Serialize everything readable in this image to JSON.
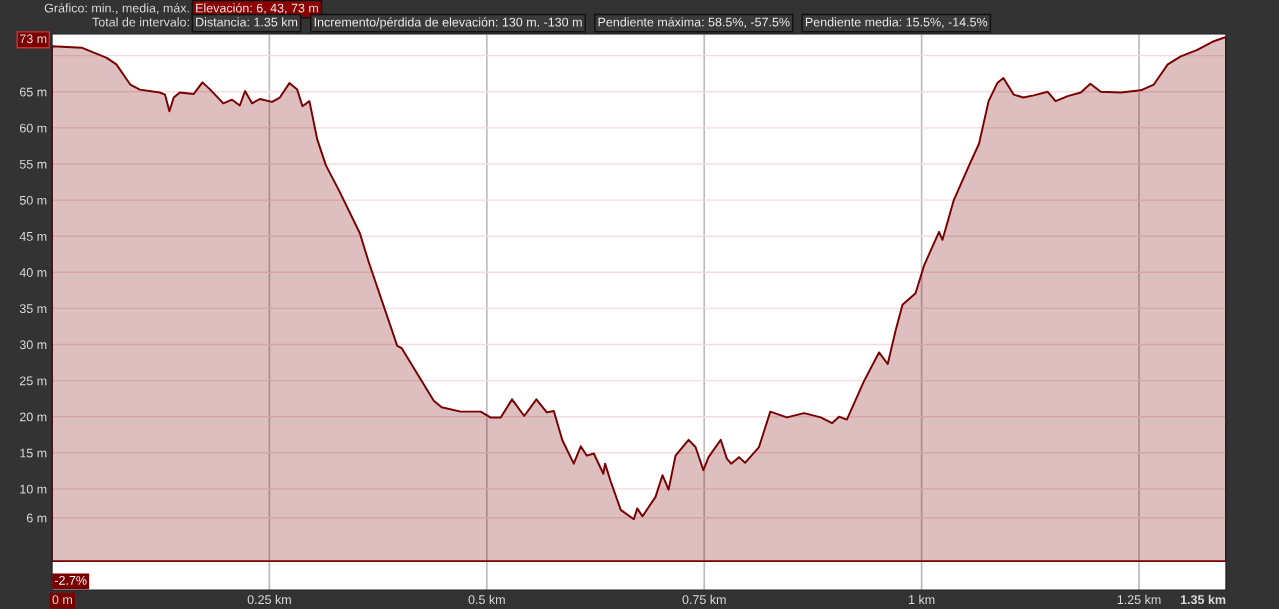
{
  "chart_data": {
    "type": "area",
    "annotations": [
      "Gráfico: min., media, máx.",
      "Elevación: 6, 43, 73 m",
      "Total de intervalo:",
      "Distancia: 1.35 km",
      "Incremento/pérdida de elevación: 130 m. -130 m",
      "Pendiente máxima: 58.5%, -57.5%",
      "Pendiente media: 15.5%, -14.5%",
      "-2.7%"
    ],
    "x": [
      0,
      0.034,
      0.063,
      0.074,
      0.09,
      0.101,
      0.124,
      0.13,
      0.135,
      0.14,
      0.147,
      0.163,
      0.173,
      0.182,
      0.197,
      0.207,
      0.216,
      0.222,
      0.23,
      0.239,
      0.253,
      0.262,
      0.273,
      0.282,
      0.288,
      0.296,
      0.305,
      0.315,
      0.331,
      0.354,
      0.364,
      0.397,
      0.402,
      0.439,
      0.448,
      0.47,
      0.493,
      0.504,
      0.516,
      0.529,
      0.543,
      0.557,
      0.569,
      0.577,
      0.587,
      0.6,
      0.608,
      0.615,
      0.623,
      0.634,
      0.636,
      0.642,
      0.654,
      0.669,
      0.673,
      0.679,
      0.694,
      0.702,
      0.709,
      0.717,
      0.732,
      0.74,
      0.749,
      0.755,
      0.769,
      0.776,
      0.781,
      0.79,
      0.797,
      0.813,
      0.826,
      0.845,
      0.865,
      0.884,
      0.897,
      0.905,
      0.914,
      0.934,
      0.951,
      0.961,
      0.97,
      0.978,
      0.993,
      1.003,
      1.02,
      1.024,
      1.037,
      1.056,
      1.066,
      1.077,
      1.087,
      1.094,
      1.106,
      1.117,
      1.129,
      1.145,
      1.154,
      1.168,
      1.183,
      1.194,
      1.206,
      1.229,
      1.252,
      1.267,
      1.283,
      1.298,
      1.317,
      1.336,
      1.35
    ],
    "series": [
      {
        "color": "#7a0000",
        "values": [
          71.3,
          71.1,
          69.7,
          68.8,
          66.0,
          65.3,
          64.9,
          64.6,
          62.3,
          64.2,
          64.9,
          64.7,
          66.3,
          65.3,
          63.4,
          63.9,
          63.1,
          65.1,
          63.4,
          64.0,
          63.6,
          64.2,
          66.2,
          65.3,
          63.0,
          63.7,
          58.4,
          54.8,
          51.1,
          45.4,
          41.5,
          29.8,
          29.5,
          22.2,
          21.3,
          20.7,
          20.7,
          19.9,
          19.9,
          22.4,
          20.1,
          22.4,
          20.6,
          20.8,
          16.7,
          13.5,
          15.9,
          14.6,
          14.9,
          12.1,
          13.5,
          11.2,
          7.1,
          5.8,
          7.3,
          6.2,
          8.9,
          11.9,
          9.9,
          14.6,
          16.8,
          15.8,
          12.6,
          14.4,
          16.8,
          14.2,
          13.5,
          14.4,
          13.6,
          15.8,
          20.7,
          19.9,
          20.5,
          19.9,
          19.1,
          20.0,
          19.6,
          25.0,
          28.9,
          27.3,
          31.9,
          35.5,
          37.1,
          41.0,
          45.6,
          44.5,
          50.0,
          55.2,
          57.8,
          63.7,
          66.2,
          66.9,
          64.6,
          64.2,
          64.5,
          65.0,
          63.7,
          64.4,
          64.9,
          66.1,
          65.0,
          64.9,
          65.2,
          66.0,
          68.8,
          69.9,
          70.8,
          72.0,
          72.6
        ]
      }
    ],
    "xlim": [
      0,
      1.35
    ],
    "ylim": [
      -4,
      73
    ],
    "xticks": [
      {
        "value": 0,
        "label": "0 m"
      },
      {
        "value": 0.25,
        "label": "0.25 km"
      },
      {
        "value": 0.5,
        "label": "0.5 km"
      },
      {
        "value": 0.75,
        "label": "0.75 km"
      },
      {
        "value": 1,
        "label": "1 km"
      },
      {
        "value": 1.25,
        "label": "1.25 km"
      },
      {
        "value": 1.35,
        "label": "1.35 km"
      }
    ],
    "yticks": [
      {
        "value": 6,
        "label": "6 m"
      },
      {
        "value": 10,
        "label": "10 m"
      },
      {
        "value": 15,
        "label": "15 m"
      },
      {
        "value": 20,
        "label": "20 m"
      },
      {
        "value": 25,
        "label": "25 m"
      },
      {
        "value": 30,
        "label": "30 m"
      },
      {
        "value": 35,
        "label": "35 m"
      },
      {
        "value": 40,
        "label": "40 m"
      },
      {
        "value": 45,
        "label": "45 m"
      },
      {
        "value": 50,
        "label": "50 m"
      },
      {
        "value": 55,
        "label": "55 m"
      },
      {
        "value": 60,
        "label": "60 m"
      },
      {
        "value": 65,
        "label": "65 m"
      },
      {
        "value": 70,
        "label": null
      },
      {
        "value": 73,
        "label": "73 m"
      }
    ],
    "grid": true
  }
}
